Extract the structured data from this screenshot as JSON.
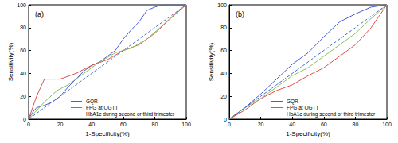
{
  "chart_data": [
    {
      "type": "line",
      "title": "(a)",
      "x_label": "1-Specificity(%)",
      "y_label": "Sensitivity(%)",
      "xlim": [
        0,
        100
      ],
      "ylim": [
        0,
        100
      ],
      "xticks": [
        0,
        20,
        40,
        60,
        80,
        100
      ],
      "yticks": [
        0,
        20,
        40,
        60,
        80,
        100
      ],
      "legend": "lower right",
      "series": [
        {
          "name": "GQR",
          "color": "#4a5bd4",
          "x": [
            0,
            2,
            5,
            10,
            15,
            20,
            25,
            30,
            35,
            40,
            45,
            50,
            55,
            60,
            65,
            70,
            75,
            80,
            85,
            100
          ],
          "values": [
            0,
            5,
            10,
            12,
            15,
            20,
            28,
            35,
            42,
            47,
            50,
            55,
            60,
            70,
            78,
            85,
            95,
            98,
            100,
            100
          ]
        },
        {
          "name": "FPG at OGTT",
          "color": "#e0504f",
          "x": [
            0,
            5,
            10,
            20,
            30,
            40,
            50,
            60,
            70,
            80,
            90,
            100
          ],
          "values": [
            0,
            20,
            35,
            35,
            40,
            47,
            52,
            60,
            65,
            75,
            88,
            100
          ]
        },
        {
          "name": "HbA1c during second or third trimester",
          "color": "#8cbf5a",
          "x": [
            0,
            10,
            18,
            25,
            35,
            45,
            55,
            65,
            75,
            85,
            95,
            100
          ],
          "values": [
            0,
            15,
            25,
            30,
            40,
            50,
            58,
            62,
            70,
            82,
            95,
            100
          ]
        },
        {
          "color": "#3f6fd0",
          "line_style": "dashed",
          "x": [
            0,
            100
          ],
          "values": [
            0,
            100
          ]
        }
      ]
    },
    {
      "type": "line",
      "title": "(b)",
      "x_label": "1-Specificity(%)",
      "y_label": "Sensitivity(%)",
      "xlim": [
        0,
        100
      ],
      "ylim": [
        0,
        100
      ],
      "xticks": [
        0,
        20,
        40,
        60,
        80,
        100
      ],
      "yticks": [
        0,
        20,
        40,
        60,
        80,
        100
      ],
      "legend": "lower right",
      "series": [
        {
          "name": "GQR",
          "color": "#4a5bd4",
          "x": [
            0,
            10,
            20,
            30,
            40,
            50,
            60,
            70,
            80,
            90,
            100
          ],
          "values": [
            0,
            10,
            22,
            35,
            48,
            58,
            72,
            85,
            92,
            98,
            100
          ]
        },
        {
          "name": "FPG at OGTT",
          "color": "#e0504f",
          "x": [
            0,
            10,
            20,
            30,
            40,
            50,
            60,
            70,
            80,
            90,
            100
          ],
          "values": [
            0,
            8,
            18,
            25,
            30,
            38,
            45,
            55,
            65,
            80,
            100
          ]
        },
        {
          "name": "HbA1c during second or third trimester",
          "color": "#8cbf5a",
          "x": [
            0,
            10,
            20,
            30,
            40,
            50,
            60,
            70,
            80,
            90,
            100
          ],
          "values": [
            0,
            10,
            18,
            28,
            38,
            45,
            55,
            65,
            75,
            88,
            100
          ]
        },
        {
          "color": "#3f6fd0",
          "line_style": "dashed",
          "x": [
            0,
            100
          ],
          "values": [
            0,
            100
          ]
        }
      ]
    }
  ]
}
